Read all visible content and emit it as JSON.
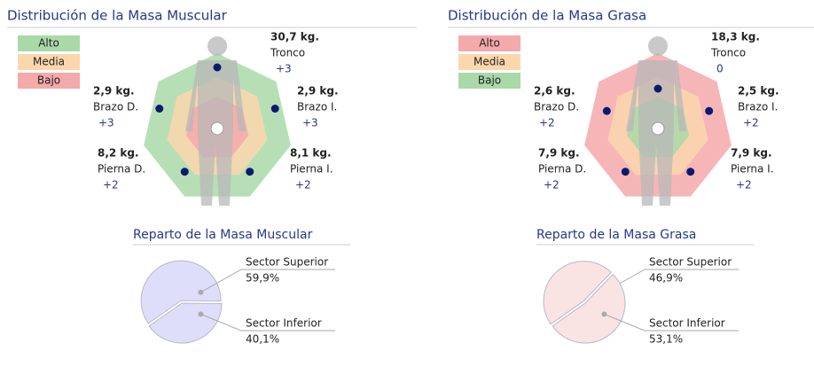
{
  "panels": [
    {
      "title": "Distribución de la Masa Muscular",
      "legend": [
        {
          "label": "Alto",
          "color": "#a9d9a9"
        },
        {
          "label": "Media",
          "color": "#fcd7ad"
        },
        {
          "label": "Bajo",
          "color": "#f4a9ab"
        }
      ],
      "segments": [
        {
          "mass": "30,7 kg.",
          "name": "Tronco",
          "score": 3,
          "score_label": "+3"
        },
        {
          "mass": "2,9 kg.",
          "name": "Brazo D.",
          "score": 3,
          "score_label": "+3"
        },
        {
          "mass": "2,9 kg.",
          "name": "Brazo I.",
          "score": 3,
          "score_label": "+3"
        },
        {
          "mass": "8,2 kg.",
          "name": "Pierna D.",
          "score": 2,
          "score_label": "+2"
        },
        {
          "mass": "8,1 kg.",
          "name": "Pierna I.",
          "score": 2,
          "score_label": "+2"
        }
      ]
    },
    {
      "title": "Distribución de la Masa Grasa",
      "legend": [
        {
          "label": "Alto",
          "color": "#f4a9ab"
        },
        {
          "label": "Media",
          "color": "#fcd7ad"
        },
        {
          "label": "Bajo",
          "color": "#a9d9a9"
        }
      ],
      "segments": [
        {
          "mass": "18,3 kg.",
          "name": "Tronco",
          "score": 0,
          "score_label": "0"
        },
        {
          "mass": "2,6 kg.",
          "name": "Brazo D.",
          "score": 2,
          "score_label": "+2"
        },
        {
          "mass": "2,5 kg.",
          "name": "Brazo I.",
          "score": 2,
          "score_label": "+2"
        },
        {
          "mass": "7,9 kg.",
          "name": "Pierna D.",
          "score": 2,
          "score_label": "+2"
        },
        {
          "mass": "7,9 kg.",
          "name": "Pierna I.",
          "score": 2,
          "score_label": "+2"
        }
      ]
    }
  ],
  "chart_data": [
    {
      "type": "pie",
      "title": "Reparto de la Masa Muscular",
      "categories": [
        "Sector Superior",
        "Sector Inferior"
      ],
      "values": [
        59.9,
        40.1
      ],
      "value_labels": [
        "59,9%",
        "40,1%"
      ],
      "color": "#dedefa"
    },
    {
      "type": "pie",
      "title": "Reparto de la Masa Grasa",
      "categories": [
        "Sector Superior",
        "Sector Inferior"
      ],
      "values": [
        46.9,
        53.1
      ],
      "value_labels": [
        "46,9%",
        "53,1%"
      ],
      "color": "#fae3e3"
    }
  ]
}
